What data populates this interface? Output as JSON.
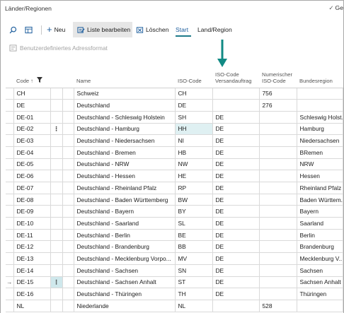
{
  "window": {
    "title": "Länder/Regionen",
    "title_right": "Ge"
  },
  "toolbar": {
    "new_label": "Neu",
    "edit_list_label": "Liste bearbeiten",
    "delete_label": "Löschen",
    "start_label": "Start",
    "country_label": "Land/Region"
  },
  "subbar": {
    "custom_address_label": "Benutzerdefiniertes Adressformat"
  },
  "columns": {
    "code": "Code ↑",
    "name": "Name",
    "iso_code": "ISO-Code",
    "iso_shipping_1": "ISO-Code",
    "iso_shipping_2": "Versandauftrag",
    "numeric_iso_1": "Numerischer",
    "numeric_iso_2": "ISO-Code",
    "region": "Bundesregion"
  },
  "rows": [
    {
      "code": "CH",
      "name": "Schweiz",
      "iso": "CH",
      "iso_ship": "",
      "num": "756",
      "region": ""
    },
    {
      "code": "DE",
      "name": "Deutschland",
      "iso": "DE",
      "iso_ship": "",
      "num": "276",
      "region": ""
    },
    {
      "code": "DE-01",
      "name": "Deutschland - Schleswig Holstein",
      "iso": "SH",
      "iso_ship": "DE",
      "num": "",
      "region": "Schleswig Holst..."
    },
    {
      "code": "DE-02",
      "name": "Deutschland - Hamburg",
      "iso": "HH",
      "iso_ship": "DE",
      "num": "",
      "region": "Hamburg"
    },
    {
      "code": "DE-03",
      "name": "Deutschland - Niedersachsen",
      "iso": "NI",
      "iso_ship": "DE",
      "num": "",
      "region": "Niedersachsen"
    },
    {
      "code": "DE-04",
      "name": "Deutschland - Bremen",
      "iso": "HB",
      "iso_ship": "DE",
      "num": "",
      "region": "BRemen"
    },
    {
      "code": "DE-05",
      "name": "Deutschland - NRW",
      "iso": "NW",
      "iso_ship": "DE",
      "num": "",
      "region": "NRW"
    },
    {
      "code": "DE-06",
      "name": "Deutschland - Hessen",
      "iso": "HE",
      "iso_ship": "DE",
      "num": "",
      "region": "Hessen"
    },
    {
      "code": "DE-07",
      "name": "Deutschland - Rheinland Pfalz",
      "iso": "RP",
      "iso_ship": "DE",
      "num": "",
      "region": "Rheinland Pfalz"
    },
    {
      "code": "DE-08",
      "name": "Deutschland - Baden Württemberg",
      "iso": "BW",
      "iso_ship": "DE",
      "num": "",
      "region": "Baden Württem..."
    },
    {
      "code": "DE-09",
      "name": "Deutschland - Bayern",
      "iso": "BY",
      "iso_ship": "DE",
      "num": "",
      "region": "Bayern"
    },
    {
      "code": "DE-10",
      "name": "Deutschland - Saarland",
      "iso": "SL",
      "iso_ship": "DE",
      "num": "",
      "region": "Saarland"
    },
    {
      "code": "DE-11",
      "name": "Deutschland - Berlin",
      "iso": "BE",
      "iso_ship": "DE",
      "num": "",
      "region": "Berlin"
    },
    {
      "code": "DE-12",
      "name": "Deutschland - Brandenburg",
      "iso": "BB",
      "iso_ship": "DE",
      "num": "",
      "region": "Brandenburg"
    },
    {
      "code": "DE-13",
      "name": "Deutschland - Mecklenburg Vorpo...",
      "iso": "MV",
      "iso_ship": "DE",
      "num": "",
      "region": "Mecklenburg V..."
    },
    {
      "code": "DE-14",
      "name": "Deutschland - Sachsen",
      "iso": "SN",
      "iso_ship": "DE",
      "num": "",
      "region": "Sachsen"
    },
    {
      "code": "DE-15",
      "name": "Deutschland - Sachsen Anhalt",
      "iso": "ST",
      "iso_ship": "DE",
      "num": "",
      "region": "Sachsen Anhalt"
    },
    {
      "code": "DE-16",
      "name": "Deutschland - Thüringen",
      "iso": "TH",
      "iso_ship": "DE",
      "num": "",
      "region": "Thüringen"
    },
    {
      "code": "NL",
      "name": "Niederlande",
      "iso": "NL",
      "iso_ship": "",
      "num": "528",
      "region": ""
    }
  ],
  "colors": {
    "accent": "#1f7b8a",
    "link": "#1f5f9e",
    "selected": "#dff0f2"
  }
}
